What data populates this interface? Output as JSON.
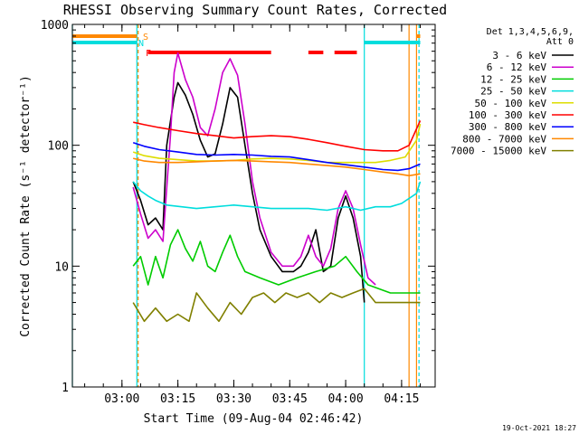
{
  "chart_data": {
    "type": "line",
    "title": "RHESSI Observing Summary Count Rates, Corrected",
    "xlabel": "Start Time (09-Aug-04 02:46:42)",
    "ylabel": "Corrected Count Rate (s⁻¹ detector⁻¹)",
    "x_start": "02:46:42",
    "xlim": [
      "02:46:42",
      "04:24:00"
    ],
    "x_ticks": [
      "03:00",
      "03:15",
      "03:30",
      "03:45",
      "04:00",
      "04:15"
    ],
    "y_scale": "log",
    "ylim": [
      1,
      1000
    ],
    "y_ticks": [
      "1",
      "10",
      "100",
      "1000"
    ],
    "legend_title": "Det 1,3,4,5,6,9,\nAtt 0",
    "legend_position": "right",
    "series": [
      {
        "name": "3 - 6 keV",
        "color": "#000000",
        "points": [
          [
            "03:03",
            50
          ],
          [
            "03:05",
            35
          ],
          [
            "03:07",
            22
          ],
          [
            "03:09",
            25
          ],
          [
            "03:11",
            20
          ],
          [
            "03:12",
            100
          ],
          [
            "03:14",
            250
          ],
          [
            "03:15",
            330
          ],
          [
            "03:17",
            260
          ],
          [
            "03:19",
            180
          ],
          [
            "03:21",
            110
          ],
          [
            "03:23",
            80
          ],
          [
            "03:25",
            85
          ],
          [
            "03:27",
            150
          ],
          [
            "03:29",
            300
          ],
          [
            "03:31",
            250
          ],
          [
            "03:33",
            100
          ],
          [
            "03:35",
            40
          ],
          [
            "03:37",
            20
          ],
          [
            "03:40",
            12
          ],
          [
            "03:43",
            9
          ],
          [
            "03:46",
            9
          ],
          [
            "03:48",
            10
          ],
          [
            "03:50",
            13
          ],
          [
            "03:52",
            20
          ],
          [
            "03:54",
            9
          ],
          [
            "03:56",
            10
          ],
          [
            "03:58",
            25
          ],
          [
            "04:00",
            38
          ],
          [
            "04:02",
            25
          ],
          [
            "04:04",
            12
          ],
          [
            "04:05",
            5
          ]
        ]
      },
      {
        "name": "6 - 12 keV",
        "color": "#cc00cc",
        "points": [
          [
            "03:03",
            45
          ],
          [
            "03:05",
            27
          ],
          [
            "03:07",
            17
          ],
          [
            "03:09",
            20
          ],
          [
            "03:11",
            16
          ],
          [
            "03:13",
            120
          ],
          [
            "03:14",
            400
          ],
          [
            "03:15",
            580
          ],
          [
            "03:17",
            350
          ],
          [
            "03:19",
            250
          ],
          [
            "03:21",
            140
          ],
          [
            "03:23",
            120
          ],
          [
            "03:25",
            200
          ],
          [
            "03:27",
            400
          ],
          [
            "03:29",
            520
          ],
          [
            "03:31",
            380
          ],
          [
            "03:33",
            150
          ],
          [
            "03:35",
            50
          ],
          [
            "03:37",
            25
          ],
          [
            "03:40",
            13
          ],
          [
            "03:43",
            10
          ],
          [
            "03:46",
            10
          ],
          [
            "03:48",
            12
          ],
          [
            "03:50",
            18
          ],
          [
            "03:52",
            12
          ],
          [
            "03:54",
            10
          ],
          [
            "03:56",
            14
          ],
          [
            "03:58",
            30
          ],
          [
            "04:00",
            42
          ],
          [
            "04:02",
            30
          ],
          [
            "04:04",
            15
          ],
          [
            "04:06",
            8
          ],
          [
            "04:08",
            7
          ]
        ]
      },
      {
        "name": "12 - 25 keV",
        "color": "#00cc00",
        "points": [
          [
            "03:03",
            10
          ],
          [
            "03:05",
            12
          ],
          [
            "03:07",
            7
          ],
          [
            "03:09",
            12
          ],
          [
            "03:11",
            8
          ],
          [
            "03:13",
            15
          ],
          [
            "03:15",
            20
          ],
          [
            "03:17",
            14
          ],
          [
            "03:19",
            11
          ],
          [
            "03:21",
            16
          ],
          [
            "03:23",
            10
          ],
          [
            "03:25",
            9
          ],
          [
            "03:27",
            13
          ],
          [
            "03:29",
            18
          ],
          [
            "03:31",
            12
          ],
          [
            "03:33",
            9
          ],
          [
            "03:37",
            8
          ],
          [
            "03:42",
            7
          ],
          [
            "03:47",
            8
          ],
          [
            "03:52",
            9
          ],
          [
            "03:57",
            10
          ],
          [
            "04:00",
            12
          ],
          [
            "04:03",
            9
          ],
          [
            "04:06",
            7
          ],
          [
            "04:12",
            6
          ],
          [
            "04:20",
            6
          ]
        ]
      },
      {
        "name": "25 - 50 keV",
        "color": "#00dddd",
        "points": [
          [
            "03:03",
            50
          ],
          [
            "03:05",
            42
          ],
          [
            "03:07",
            38
          ],
          [
            "03:09",
            35
          ],
          [
            "03:12",
            32
          ],
          [
            "03:16",
            31
          ],
          [
            "03:20",
            30
          ],
          [
            "03:25",
            31
          ],
          [
            "03:30",
            32
          ],
          [
            "03:35",
            31
          ],
          [
            "03:40",
            30
          ],
          [
            "03:45",
            30
          ],
          [
            "03:50",
            30
          ],
          [
            "03:55",
            29
          ],
          [
            "04:00",
            31
          ],
          [
            "04:04",
            29
          ],
          [
            "04:08",
            31
          ],
          [
            "04:12",
            31
          ],
          [
            "04:15",
            33
          ],
          [
            "04:19",
            40
          ],
          [
            "04:20",
            50
          ]
        ]
      },
      {
        "name": "50 - 100 keV",
        "color": "#dddd00",
        "points": [
          [
            "03:03",
            88
          ],
          [
            "03:06",
            82
          ],
          [
            "03:10",
            78
          ],
          [
            "03:15",
            76
          ],
          [
            "03:20",
            74
          ],
          [
            "03:25",
            74
          ],
          [
            "03:30",
            75
          ],
          [
            "03:35",
            77
          ],
          [
            "03:40",
            78
          ],
          [
            "03:45",
            77
          ],
          [
            "03:50",
            75
          ],
          [
            "03:55",
            72
          ],
          [
            "04:00",
            72
          ],
          [
            "04:04",
            72
          ],
          [
            "04:08",
            72
          ],
          [
            "04:12",
            75
          ],
          [
            "04:16",
            80
          ],
          [
            "04:19",
            110
          ],
          [
            "04:20",
            150
          ]
        ]
      },
      {
        "name": "100 - 300 keV",
        "color": "#ff0000",
        "points": [
          [
            "03:03",
            155
          ],
          [
            "03:06",
            148
          ],
          [
            "03:10",
            140
          ],
          [
            "03:15",
            132
          ],
          [
            "03:20",
            125
          ],
          [
            "03:25",
            120
          ],
          [
            "03:30",
            115
          ],
          [
            "03:35",
            118
          ],
          [
            "03:40",
            120
          ],
          [
            "03:45",
            118
          ],
          [
            "03:50",
            112
          ],
          [
            "03:55",
            105
          ],
          [
            "04:00",
            98
          ],
          [
            "04:05",
            92
          ],
          [
            "04:10",
            90
          ],
          [
            "04:14",
            90
          ],
          [
            "04:17",
            100
          ],
          [
            "04:20",
            160
          ]
        ]
      },
      {
        "name": "300 - 800 keV",
        "color": "#0000ff",
        "points": [
          [
            "03:03",
            105
          ],
          [
            "03:06",
            98
          ],
          [
            "03:10",
            92
          ],
          [
            "03:15",
            88
          ],
          [
            "03:20",
            84
          ],
          [
            "03:25",
            83
          ],
          [
            "03:30",
            84
          ],
          [
            "03:35",
            83
          ],
          [
            "03:40",
            81
          ],
          [
            "03:45",
            80
          ],
          [
            "03:50",
            76
          ],
          [
            "03:55",
            72
          ],
          [
            "04:00",
            69
          ],
          [
            "04:05",
            66
          ],
          [
            "04:10",
            63
          ],
          [
            "04:14",
            62
          ],
          [
            "04:17",
            64
          ],
          [
            "04:20",
            70
          ]
        ]
      },
      {
        "name": "800 - 7000 keV",
        "color": "#ff8800",
        "points": [
          [
            "03:03",
            78
          ],
          [
            "03:06",
            74
          ],
          [
            "03:10",
            72
          ],
          [
            "03:15",
            72
          ],
          [
            "03:20",
            73
          ],
          [
            "03:25",
            74
          ],
          [
            "03:30",
            75
          ],
          [
            "03:35",
            74
          ],
          [
            "03:40",
            73
          ],
          [
            "03:45",
            72
          ],
          [
            "03:50",
            70
          ],
          [
            "03:55",
            68
          ],
          [
            "04:00",
            66
          ],
          [
            "04:05",
            63
          ],
          [
            "04:10",
            60
          ],
          [
            "04:14",
            58
          ],
          [
            "04:17",
            56
          ],
          [
            "04:20",
            58
          ]
        ]
      },
      {
        "name": "7000 - 15000 keV",
        "color": "#808000",
        "points": [
          [
            "03:03",
            5
          ],
          [
            "03:06",
            3.5
          ],
          [
            "03:09",
            4.5
          ],
          [
            "03:12",
            3.5
          ],
          [
            "03:15",
            4
          ],
          [
            "03:18",
            3.5
          ],
          [
            "03:20",
            6
          ],
          [
            "03:23",
            4.5
          ],
          [
            "03:26",
            3.5
          ],
          [
            "03:29",
            5
          ],
          [
            "03:32",
            4
          ],
          [
            "03:35",
            5.5
          ],
          [
            "03:38",
            6
          ],
          [
            "03:41",
            5
          ],
          [
            "03:44",
            6
          ],
          [
            "03:47",
            5.5
          ],
          [
            "03:50",
            6
          ],
          [
            "03:53",
            5
          ],
          [
            "03:56",
            6
          ],
          [
            "03:59",
            5.5
          ],
          [
            "04:02",
            6
          ],
          [
            "04:05",
            6.5
          ],
          [
            "04:08",
            5
          ],
          [
            "04:12",
            5
          ],
          [
            "04:16",
            5
          ],
          [
            "04:20",
            5
          ]
        ]
      }
    ],
    "flags": [
      {
        "label": "S",
        "color": "#ff8800",
        "segments": [
          [
            "02:46:42",
            "03:04"
          ],
          [
            "04:19",
            "04:20"
          ]
        ]
      },
      {
        "label": "N",
        "color": "#00dddd",
        "segments": [
          [
            "02:46:42",
            "03:04"
          ],
          [
            "04:05",
            "04:20"
          ]
        ]
      },
      {
        "label": "F",
        "color": "#ff0000",
        "segments": [
          [
            "03:07",
            "03:40"
          ],
          [
            "03:50",
            "03:54"
          ],
          [
            "03:57",
            "04:03"
          ]
        ]
      }
    ],
    "vertical_markers": [
      {
        "time": "02:46:42",
        "color": "#00dddd",
        "style": "solid"
      },
      {
        "time": "03:04",
        "color": "#00dddd",
        "style": "solid"
      },
      {
        "time": "03:04:20",
        "color": "#ff8800",
        "style": "dashed"
      },
      {
        "time": "04:05",
        "color": "#00dddd",
        "style": "solid"
      },
      {
        "time": "04:17",
        "color": "#ff8800",
        "style": "solid"
      },
      {
        "time": "04:19",
        "color": "#ff8800",
        "style": "solid"
      },
      {
        "time": "04:19:40",
        "color": "#00dddd",
        "style": "dashed"
      }
    ],
    "footer_date": "19-Oct-2021 18:27"
  }
}
